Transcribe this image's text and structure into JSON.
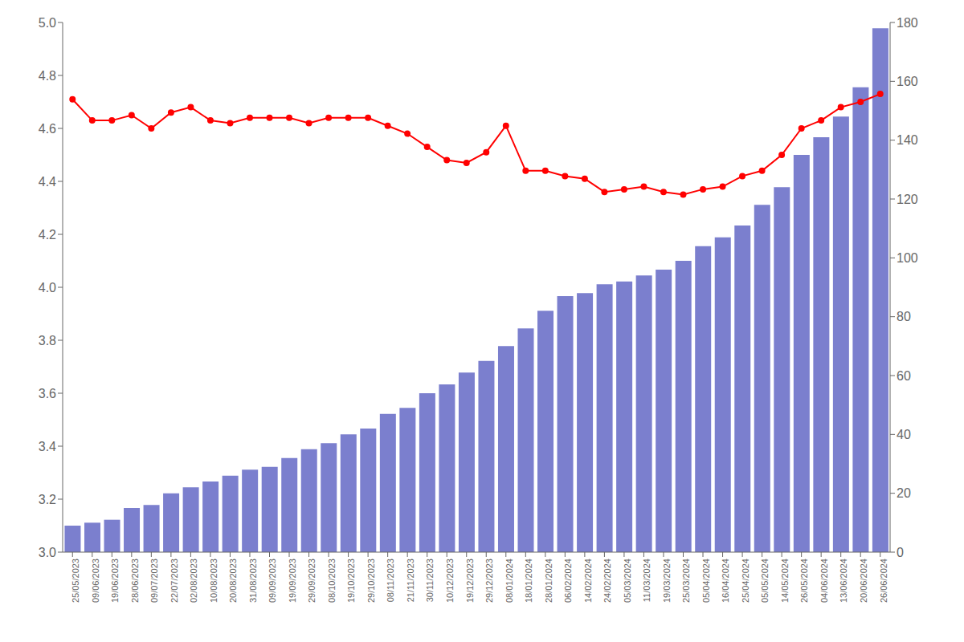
{
  "chart_data": {
    "type": "bar",
    "categories": [
      "25/05/2023",
      "09/06/2023",
      "19/06/2023",
      "28/06/2023",
      "09/07/2023",
      "22/07/2023",
      "02/08/2023",
      "10/08/2023",
      "20/08/2023",
      "31/08/2023",
      "09/09/2023",
      "19/09/2023",
      "29/09/2023",
      "08/10/2023",
      "19/10/2023",
      "29/10/2023",
      "08/11/2023",
      "21/11/2023",
      "30/11/2023",
      "10/12/2023",
      "19/12/2023",
      "29/12/2023",
      "08/01/2024",
      "18/01/2024",
      "28/01/2024",
      "06/02/2024",
      "14/02/2024",
      "24/02/2024",
      "05/03/2024",
      "11/03/2024",
      "19/03/2024",
      "25/03/2024",
      "05/04/2024",
      "16/04/2024",
      "25/04/2024",
      "05/05/2024",
      "14/05/2024",
      "26/05/2024",
      "04/06/2024",
      "13/06/2024",
      "20/06/2024",
      "26/06/2024"
    ],
    "series": [
      {
        "type": "bar",
        "axis": "y2",
        "color": "#7b7fce",
        "values": [
          9,
          10,
          11,
          15,
          16,
          20,
          22,
          24,
          26,
          28,
          29,
          32,
          35,
          37,
          40,
          42,
          47,
          49,
          54,
          57,
          61,
          65,
          70,
          76,
          82,
          87,
          88,
          91,
          92,
          94,
          96,
          99,
          104,
          107,
          111,
          118,
          124,
          135,
          141,
          148,
          158,
          178
        ]
      },
      {
        "type": "line",
        "color": "#ff0000",
        "marker": "circle",
        "values": [
          4.71,
          4.63,
          4.63,
          4.65,
          4.6,
          4.66,
          4.68,
          4.63,
          4.62,
          4.64,
          4.64,
          4.64,
          4.62,
          4.64,
          4.64,
          4.64,
          4.61,
          4.58,
          4.53,
          4.48,
          4.47,
          4.51,
          4.61,
          4.44,
          4.44,
          4.42,
          4.41,
          4.36,
          4.37,
          4.38,
          4.36,
          4.35,
          4.37,
          4.38,
          4.42,
          4.44,
          4.5,
          4.6,
          4.63,
          4.68,
          4.7,
          4.73
        ]
      }
    ],
    "ylim": [
      3.0,
      5.0
    ],
    "yticks": [
      {
        "value": 3,
        "label": "3.0"
      },
      3.2,
      3.4,
      3.6,
      3.8,
      {
        "value": 4,
        "label": "4.0"
      },
      4.2,
      4.4,
      4.6,
      4.8,
      {
        "value": 5,
        "label": "5.0"
      }
    ],
    "y2lim": [
      0,
      180
    ],
    "y2ticks": [
      0,
      20,
      40,
      60,
      80,
      100,
      120,
      140,
      160,
      180
    ],
    "grid": false
  }
}
